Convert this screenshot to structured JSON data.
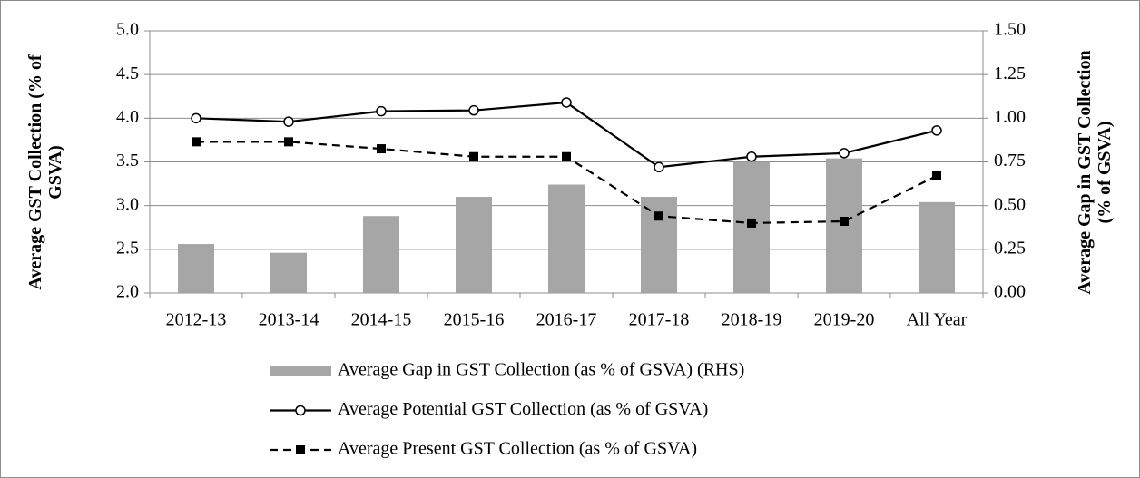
{
  "chart_data": {
    "type": "combo",
    "categories": [
      "2012-13",
      "2013-14",
      "2014-15",
      "2015-16",
      "2016-17",
      "2017-18",
      "2018-19",
      "2019-20",
      "All Year"
    ],
    "y_label": "Average GST Collection (% of GSVA)",
    "y2_label": "Average Gap in GST Collection (% of GSVA)",
    "ylim": [
      2,
      5
    ],
    "yticks": [
      {
        "value": 2,
        "label": "2.0"
      },
      2.5,
      {
        "value": 3,
        "label": "3.0"
      },
      3.5,
      {
        "value": 4,
        "label": "4.0"
      },
      4.5,
      {
        "value": 5,
        "label": "5.0"
      }
    ],
    "y2lim": [
      0,
      1.5
    ],
    "y2ticks": [
      {
        "value": 0,
        "label": "0.00"
      },
      0.25,
      {
        "value": 0.5,
        "label": "0.50"
      },
      0.75,
      {
        "value": 1,
        "label": "1.00"
      },
      1.25,
      {
        "value": 1.5,
        "label": "1.50"
      }
    ],
    "grid": true,
    "legend": "bottom",
    "series": [
      {
        "name": "Average Gap in GST Collection (as % of GSVA) (RHS)",
        "type": "bar",
        "axis": "y2",
        "color": "#a6a6a6",
        "values": [
          0.28,
          0.23,
          0.44,
          0.55,
          0.62,
          0.55,
          0.75,
          0.77,
          0.52
        ]
      },
      {
        "name": "Average Potential GST Collection (as % of GSVA)",
        "type": "line",
        "marker": "circle",
        "dashed": false,
        "color": "#000000",
        "values": [
          4.0,
          3.96,
          4.08,
          4.09,
          4.18,
          3.44,
          3.56,
          3.6,
          3.86
        ]
      },
      {
        "name": "Average Present GST Collection (as % of GSVA)",
        "type": "line",
        "marker": "square",
        "dashed": true,
        "color": "#000000",
        "values": [
          3.73,
          3.73,
          3.65,
          3.56,
          3.56,
          2.88,
          2.8,
          2.82,
          3.34
        ]
      }
    ]
  }
}
